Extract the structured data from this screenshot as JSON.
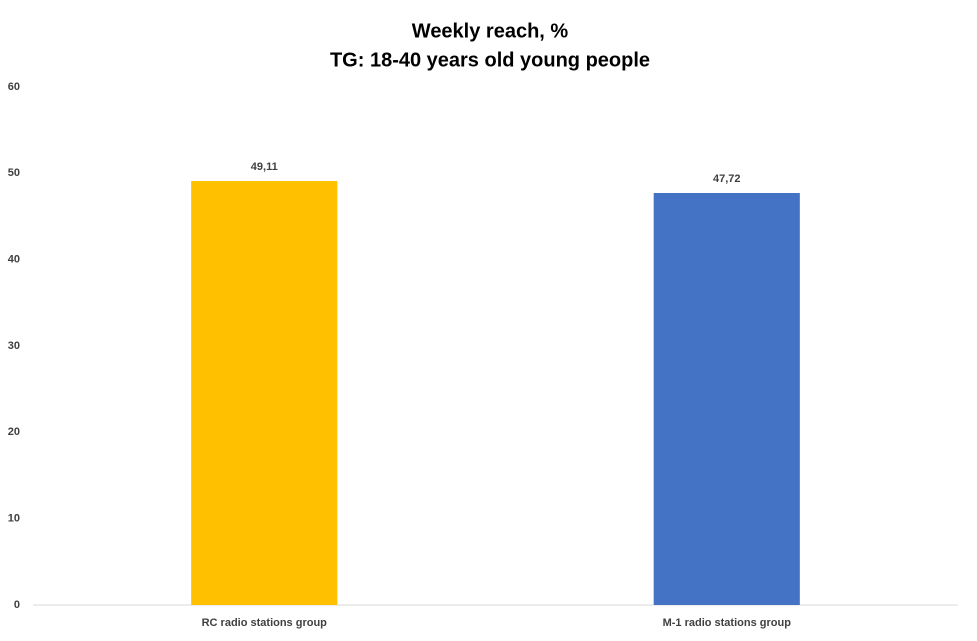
{
  "chart_data": {
    "type": "bar",
    "title": "Weekly reach, %",
    "subtitle": "TG: 18-40 years old young people",
    "categories": [
      "RC radio stations group",
      "M-1 radio stations group"
    ],
    "values": [
      49.11,
      47.72
    ],
    "value_labels": [
      "49,11",
      "47,72"
    ],
    "colors": [
      "#ffc000",
      "#4472c4"
    ],
    "ylim": [
      0,
      60
    ],
    "yticks": [
      0,
      10,
      20,
      30,
      40,
      50,
      60
    ],
    "grid": false
  }
}
